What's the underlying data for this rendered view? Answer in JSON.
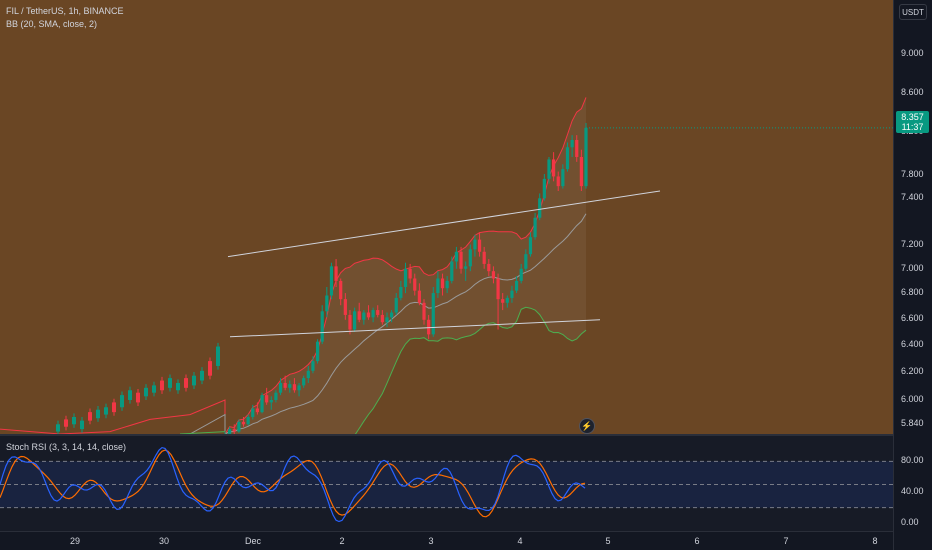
{
  "header": {
    "symbol_line": "FIL / TetherUS, 1h, BINANCE",
    "bb_legend": "BB (20, SMA, close, 2)",
    "rsi_legend": "Stoch RSI (3, 3, 14, 14, close)"
  },
  "price_axis": {
    "currency": "USDT",
    "last_price": "8.357",
    "countdown": "11:37",
    "ticks": [
      "9.000",
      "8.600",
      "8.200",
      "7.800",
      "7.400",
      "7.200",
      "7.000",
      "6.800",
      "6.600",
      "6.400",
      "6.200",
      "6.000",
      "5.840"
    ],
    "rsi_ticks": [
      "80.00",
      "40.00",
      "0.00"
    ]
  },
  "time_axis": {
    "ticks": [
      "29",
      "30",
      "Dec",
      "2",
      "3",
      "4",
      "5",
      "6",
      "7",
      "8"
    ]
  },
  "colors": {
    "background": "#6a4624",
    "up": "#089981",
    "down": "#f23645",
    "bb_upper": "#f23645",
    "bb_basis": "#9a9a9a",
    "bb_lower": "#4caf50",
    "rsi_k": "#2962ff",
    "rsi_d": "#ff6d00"
  },
  "icons": {
    "replay": "bolt-icon"
  },
  "chart_data": {
    "type": "candlestick",
    "title": "FIL / TetherUS, 1h, BINANCE",
    "ylim": [
      5.84,
      9.2
    ],
    "x_ticks": [
      "29",
      "30",
      "Dec",
      "2",
      "3",
      "4",
      "5",
      "6",
      "7",
      "8"
    ],
    "candles": [
      [
        5.8,
        5.86,
        5.78,
        5.84
      ],
      [
        5.84,
        5.9,
        5.82,
        5.88
      ],
      [
        5.88,
        5.92,
        5.84,
        5.86
      ],
      [
        5.86,
        5.96,
        5.85,
        5.94
      ],
      [
        5.94,
        5.98,
        5.9,
        5.92
      ],
      [
        5.92,
        6.0,
        5.91,
        5.98
      ],
      [
        5.98,
        6.08,
        5.96,
        6.05
      ],
      [
        6.05,
        6.1,
        6.0,
        6.02
      ],
      [
        6.02,
        6.18,
        6.01,
        6.16
      ],
      [
        6.16,
        6.22,
        6.08,
        6.1
      ],
      [
        6.1,
        6.15,
        6.04,
        6.12
      ],
      [
        6.12,
        6.2,
        6.1,
        6.18
      ],
      [
        6.18,
        6.3,
        6.16,
        6.26
      ],
      [
        6.26,
        6.32,
        6.2,
        6.22
      ],
      [
        6.22,
        6.28,
        6.18,
        6.25
      ],
      [
        6.25,
        6.3,
        6.18,
        6.2
      ],
      [
        6.2,
        6.26,
        6.15,
        6.24
      ],
      [
        6.24,
        6.32,
        6.22,
        6.3
      ],
      [
        6.3,
        6.4,
        6.26,
        6.36
      ],
      [
        6.36,
        6.48,
        6.34,
        6.44
      ],
      [
        6.44,
        6.62,
        6.42,
        6.6
      ],
      [
        6.6,
        6.9,
        6.58,
        6.85
      ],
      [
        6.85,
        7.05,
        6.8,
        6.98
      ],
      [
        6.98,
        7.25,
        6.95,
        7.22
      ],
      [
        7.22,
        7.28,
        7.05,
        7.1
      ],
      [
        7.1,
        7.12,
        6.9,
        6.95
      ],
      [
        6.95,
        7.0,
        6.78,
        6.82
      ],
      [
        6.82,
        6.86,
        6.66,
        6.7
      ],
      [
        6.7,
        6.88,
        6.68,
        6.85
      ],
      [
        6.85,
        6.92,
        6.76,
        6.78
      ],
      [
        6.78,
        6.86,
        6.74,
        6.84
      ],
      [
        6.84,
        6.9,
        6.78,
        6.8
      ],
      [
        6.8,
        6.88,
        6.76,
        6.86
      ],
      [
        6.86,
        6.9,
        6.8,
        6.82
      ],
      [
        6.82,
        6.86,
        6.74,
        6.76
      ],
      [
        6.76,
        6.84,
        6.72,
        6.8
      ],
      [
        6.8,
        6.86,
        6.76,
        6.84
      ],
      [
        6.84,
        7.0,
        6.82,
        6.96
      ],
      [
        6.96,
        7.1,
        6.94,
        7.05
      ],
      [
        7.05,
        7.25,
        7.0,
        7.2
      ],
      [
        7.2,
        7.24,
        7.08,
        7.12
      ],
      [
        7.12,
        7.16,
        6.98,
        7.02
      ],
      [
        7.02,
        7.08,
        6.9,
        6.92
      ],
      [
        6.92,
        6.95,
        6.74,
        6.78
      ],
      [
        6.78,
        6.82,
        6.62,
        6.66
      ],
      [
        6.66,
        7.05,
        6.64,
        7.0
      ],
      [
        7.0,
        7.18,
        6.96,
        7.12
      ],
      [
        7.12,
        7.16,
        6.98,
        7.04
      ],
      [
        7.04,
        7.14,
        7.0,
        7.1
      ],
      [
        7.1,
        7.3,
        7.08,
        7.26
      ],
      [
        7.26,
        7.38,
        7.2,
        7.34
      ],
      [
        7.34,
        7.38,
        7.16,
        7.2
      ],
      [
        7.2,
        7.26,
        7.1,
        7.22
      ],
      [
        7.22,
        7.4,
        7.18,
        7.36
      ],
      [
        7.36,
        7.48,
        7.3,
        7.44
      ],
      [
        7.44,
        7.5,
        7.3,
        7.34
      ],
      [
        7.34,
        7.38,
        7.2,
        7.24
      ],
      [
        7.24,
        7.28,
        7.14,
        7.18
      ],
      [
        7.18,
        7.22,
        7.08,
        7.12
      ],
      [
        7.12,
        7.16,
        6.7,
        6.95
      ],
      [
        6.95,
        7.0,
        6.86,
        6.92
      ],
      [
        6.92,
        6.98,
        6.88,
        6.96
      ],
      [
        6.96,
        7.06,
        6.92,
        7.02
      ],
      [
        7.02,
        7.14,
        7.0,
        7.1
      ],
      [
        7.1,
        7.24,
        7.08,
        7.2
      ],
      [
        7.2,
        7.36,
        7.18,
        7.32
      ],
      [
        7.32,
        7.5,
        7.3,
        7.46
      ],
      [
        7.46,
        7.66,
        7.44,
        7.62
      ],
      [
        7.62,
        7.82,
        7.6,
        7.78
      ],
      [
        7.78,
        7.98,
        7.76,
        7.94
      ],
      [
        7.94,
        8.12,
        7.9,
        8.1
      ],
      [
        8.1,
        8.16,
        7.92,
        7.96
      ],
      [
        7.96,
        8.0,
        7.84,
        7.88
      ],
      [
        7.88,
        8.06,
        7.86,
        8.02
      ],
      [
        8.02,
        8.24,
        8.0,
        8.2
      ],
      [
        8.2,
        8.3,
        8.12,
        8.26
      ],
      [
        8.26,
        8.3,
        8.08,
        8.12
      ],
      [
        8.12,
        8.18,
        7.84,
        7.88
      ],
      [
        7.88,
        8.4,
        7.86,
        8.36
      ]
    ]
  }
}
